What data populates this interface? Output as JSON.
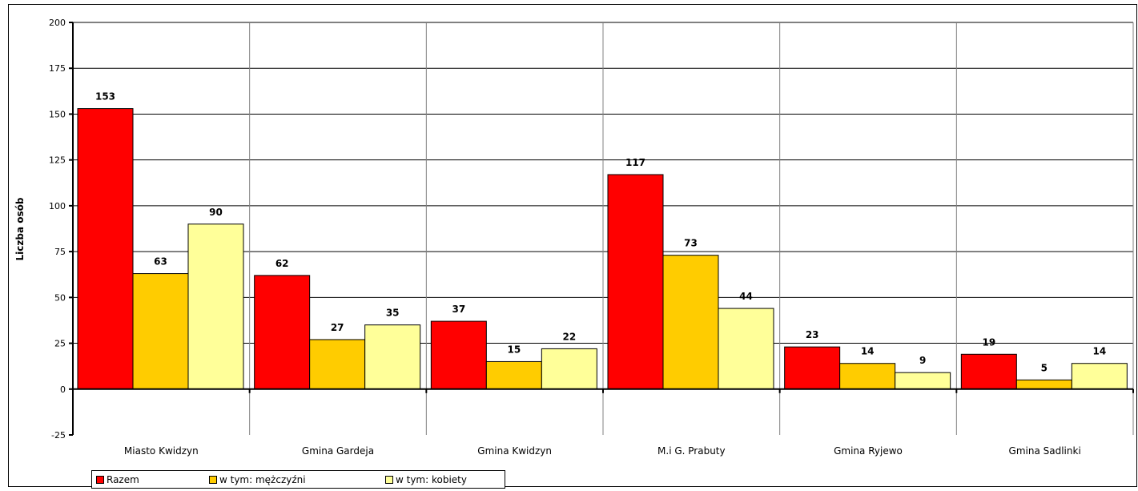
{
  "chart_data": {
    "type": "bar",
    "title": "",
    "xlabel": "",
    "ylabel": "Liczba osób",
    "ylim": [
      -25,
      200
    ],
    "yticks": [
      -25,
      0,
      25,
      50,
      75,
      100,
      125,
      150,
      175,
      200
    ],
    "grid": true,
    "legend_position": "bottom-left",
    "categories": [
      "Miasto Kwidzyn",
      "Gmina Gardeja",
      "Gmina Kwidzyn",
      "M.i G. Prabuty",
      "Gmina Ryjewo",
      "Gmina Sadlinki"
    ],
    "series": [
      {
        "name": "Razem",
        "color": "#ff0000",
        "values": [
          153,
          62,
          37,
          117,
          23,
          19
        ]
      },
      {
        "name": "w tym: mężczyźni",
        "color": "#ffcc00",
        "values": [
          63,
          27,
          15,
          73,
          14,
          5
        ]
      },
      {
        "name": "w tym: kobiety",
        "color": "#ffff99",
        "values": [
          90,
          35,
          22,
          44,
          9,
          14
        ]
      }
    ]
  }
}
